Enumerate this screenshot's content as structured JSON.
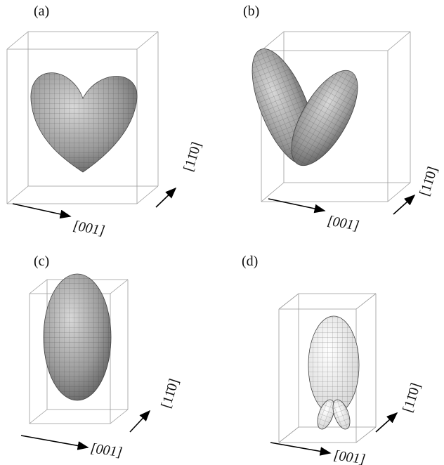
{
  "panels": [
    {
      "label": "(a)",
      "axis_h": "[001]",
      "axis_v": "[11̄0]"
    },
    {
      "label": "(b)",
      "axis_h": "[001]",
      "axis_v": "[11̄0]"
    },
    {
      "label": "(c)",
      "axis_h": "[001]",
      "axis_v": "[11̄0]"
    },
    {
      "label": "(d)",
      "axis_h": "[001]",
      "axis_v": "[11̄0]"
    }
  ]
}
